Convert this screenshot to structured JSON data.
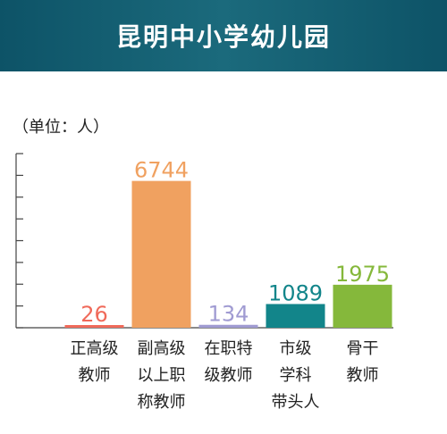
{
  "header": {
    "title": "昆明中小学幼儿园"
  },
  "unit_label": "（单位：人）",
  "chart_data": {
    "type": "bar",
    "title": "昆明中小学幼儿园",
    "ylabel": "（单位：人）",
    "categories": [
      [
        "正高级",
        "教师"
      ],
      [
        "副高级",
        "以上职",
        "称教师"
      ],
      [
        "在职特",
        "级教师"
      ],
      [
        "市级",
        "学科",
        "带头人"
      ],
      [
        "骨干",
        "教师"
      ]
    ],
    "values": [
      26,
      6744,
      134,
      1089,
      1975
    ],
    "colors": [
      "#f06a5a",
      "#f0a160",
      "#a09bd2",
      "#12858a",
      "#85b83b"
    ],
    "ylim": [
      0,
      8000
    ],
    "grid": false
  }
}
